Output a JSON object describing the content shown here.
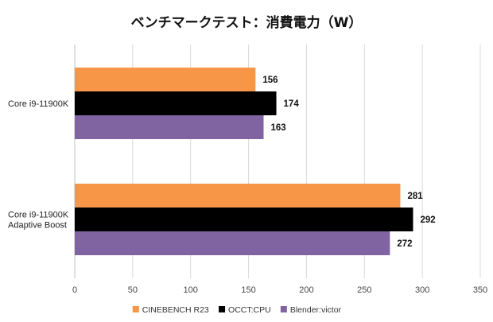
{
  "chart_data": {
    "type": "bar",
    "orientation": "horizontal",
    "title": "ベンチマークテスト：消費電力（W）",
    "categories": [
      "Core i9-11900K",
      "Core i9-11900K\nAdaptive Boost"
    ],
    "series": [
      {
        "name": "CINEBENCH R23",
        "color": "#f79646",
        "values": [
          156,
          281
        ]
      },
      {
        "name": "OCCT:CPU",
        "color": "#000000",
        "values": [
          174,
          292
        ]
      },
      {
        "name": "Blender:victor",
        "color": "#8064a2",
        "values": [
          163,
          272
        ]
      }
    ],
    "xlim": [
      0,
      350
    ],
    "xticks": [
      0,
      50,
      100,
      150,
      200,
      250,
      300,
      350
    ],
    "grid": true,
    "legend_position": "bottom",
    "data_labels": true
  }
}
